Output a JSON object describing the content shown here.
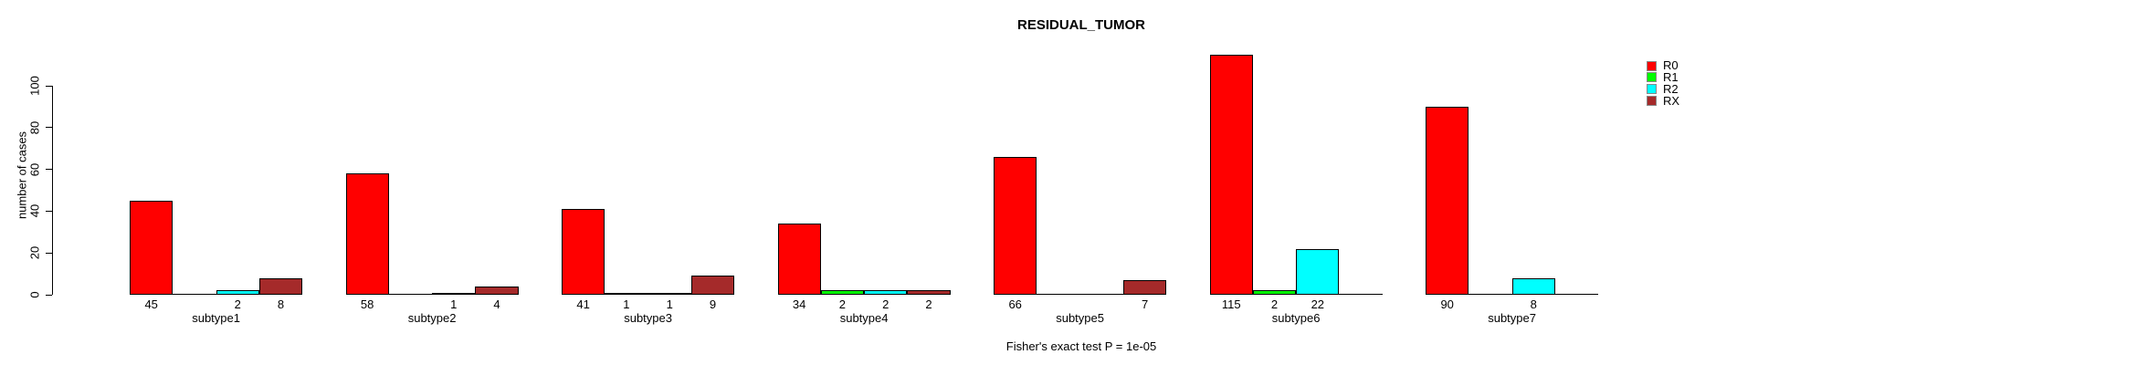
{
  "chart_data": {
    "type": "bar",
    "title": "RESIDUAL_TUMOR",
    "ylabel": "number of cases",
    "xlabel": "",
    "annotation": "Fisher's exact test P = 1e-05",
    "categories": [
      "subtype1",
      "subtype2",
      "subtype3",
      "subtype4",
      "subtype5",
      "subtype6",
      "subtype7"
    ],
    "series": [
      {
        "name": "R0",
        "color": "#ff0000",
        "values": [
          45,
          58,
          41,
          34,
          66,
          115,
          90
        ]
      },
      {
        "name": "R1",
        "color": "#00ff00",
        "values": [
          0,
          0,
          1,
          2,
          0,
          2,
          0
        ]
      },
      {
        "name": "R2",
        "color": "#00ffff",
        "values": [
          2,
          1,
          1,
          2,
          0,
          22,
          8
        ]
      },
      {
        "name": "RX",
        "color": "#a52a2a",
        "values": [
          8,
          4,
          9,
          2,
          7,
          0,
          0
        ]
      }
    ],
    "yticks": [
      0,
      20,
      40,
      60,
      80,
      100
    ],
    "axis_range": [
      0,
      100
    ],
    "grid": false,
    "legend_position": "top-right",
    "value_labels_note": "value shown under each bar only when greater than 0"
  }
}
